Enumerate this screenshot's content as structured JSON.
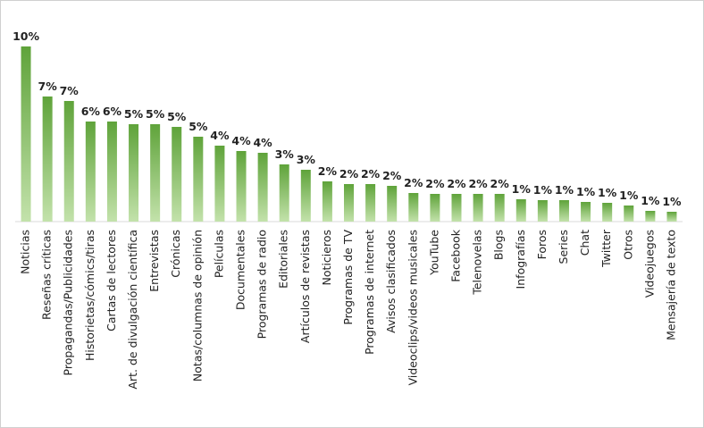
{
  "chart_data": {
    "type": "bar",
    "categories": [
      "Noticias",
      "Reseñas críticas",
      "Propagandas/Publicidades",
      "Historietas/cómics/tiras",
      "Cartas de lectores",
      "Art. de divulgación científica",
      "Entrevistas",
      "Crónicas",
      "Notas/columnas de opinión",
      "Películas",
      "Documentales",
      "Programas de radio",
      "Editoriales",
      "Artículos de revistas",
      "Noticieros",
      "Programas de TV",
      "Programas de internet",
      "Avisos clasificados",
      "Videoclips/videos musicales",
      "YouTube",
      "Facebook",
      "Telenovelas",
      "Blogs",
      "Infografías",
      "Foros",
      "Series",
      "Chat",
      "Twitter",
      "Otros",
      "Videojuegos",
      "Mensajería de texto"
    ],
    "values": [
      9.8,
      7.0,
      6.75,
      5.6,
      5.6,
      5.45,
      5.45,
      5.3,
      4.75,
      4.25,
      3.95,
      3.85,
      3.2,
      2.9,
      2.25,
      2.1,
      2.1,
      2.0,
      1.6,
      1.55,
      1.55,
      1.55,
      1.55,
      1.25,
      1.2,
      1.2,
      1.1,
      1.05,
      0.9,
      0.6,
      0.55
    ],
    "value_labels": [
      "10%",
      "7%",
      "7%",
      "6%",
      "6%",
      "5%",
      "5%",
      "5%",
      "5%",
      "4%",
      "4%",
      "4%",
      "3%",
      "3%",
      "2%",
      "2%",
      "2%",
      "2%",
      "2%",
      "2%",
      "2%",
      "2%",
      "2%",
      "1%",
      "1%",
      "1%",
      "1%",
      "1%",
      "1%",
      "1%",
      "1%"
    ],
    "color": "#5fa33a",
    "ylim": [
      0,
      10
    ]
  }
}
